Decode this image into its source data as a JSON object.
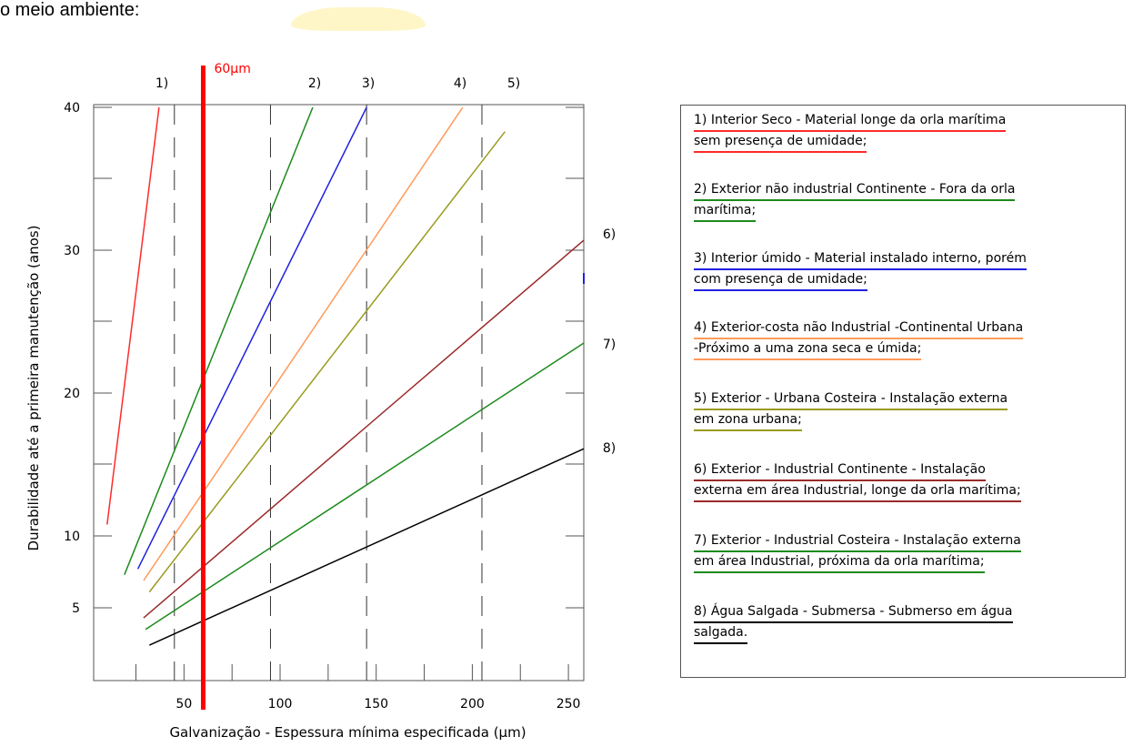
{
  "caption": "o meio ambiente:",
  "chart_data": {
    "type": "line",
    "xlabel": "Galvanização - Espessura mínima especificada (µm)",
    "ylabel": "Durabilidade até a primeira manutenção (anos)",
    "x_ticks": [
      50,
      100,
      150,
      200,
      250
    ],
    "y_ticks": [
      5,
      10,
      20,
      30,
      40
    ],
    "vertical_reference": {
      "x": 60,
      "label": "60µm",
      "color": "#ff0000"
    },
    "dashed_reference_x": [
      45,
      95,
      145,
      205
    ],
    "series": [
      {
        "name": "1)",
        "color": "#ff2a2a",
        "points": [
          [
            10,
            10.8
          ],
          [
            37,
            40
          ]
        ]
      },
      {
        "name": "2)",
        "color": "#1c8a1c",
        "points": [
          [
            19,
            7.3
          ],
          [
            117,
            40
          ]
        ]
      },
      {
        "name": "3)",
        "color": "#2020e0",
        "points": [
          [
            26,
            7.7
          ],
          [
            145,
            40
          ]
        ]
      },
      {
        "name": "4)",
        "color": "#ff9a5a",
        "points": [
          [
            29,
            6.9
          ],
          [
            195,
            40
          ]
        ]
      },
      {
        "name": "5)",
        "color": "#9a9a20",
        "points": [
          [
            32,
            6.1
          ],
          [
            217,
            38.3
          ]
        ]
      },
      {
        "name": "6)",
        "color": "#9a2a2a",
        "points": [
          [
            29,
            4.3
          ],
          [
            258,
            30.7
          ]
        ]
      },
      {
        "name": "7)",
        "color": "#1c8a1c",
        "points": [
          [
            30,
            3.5
          ],
          [
            258,
            23.5
          ]
        ]
      },
      {
        "name": "8)",
        "color": "#000000",
        "points": [
          [
            32,
            2.4
          ],
          [
            258,
            16.1
          ]
        ]
      }
    ]
  },
  "legend": [
    {
      "lines": [
        "1) Interior Seco - Material longe da orla marítima",
        "sem presença de umidade;"
      ],
      "color": "#ff2a2a"
    },
    {
      "lines": [
        "2) Exterior não industrial Continente - Fora da orla",
        "marítima;"
      ],
      "color": "#1c8a1c"
    },
    {
      "lines": [
        "3) Interior úmido - Material instalado interno, porém",
        "com presença de umidade;"
      ],
      "color": "#2020e0"
    },
    {
      "lines": [
        "4) Exterior-costa não Industrial -Continental Urbana",
        "-Próximo a uma zona seca e úmida;"
      ],
      "color": "#ff9a5a"
    },
    {
      "lines": [
        "5) Exterior - Urbana Costeira - Instalação externa",
        "em zona urbana;"
      ],
      "color": "#9a9a20"
    },
    {
      "lines": [
        "6) Exterior - Industrial Continente - Instalação",
        "externa em área Industrial, longe da orla marítima;"
      ],
      "color": "#9a2a2a"
    },
    {
      "lines": [
        "7) Exterior - Industrial Costeira - Instalação externa",
        "em área Industrial, próxima da orla marítima;"
      ],
      "color": "#1c8a1c"
    },
    {
      "lines": [
        "8) Água Salgada - Submersa - Submerso em água",
        "salgada."
      ],
      "color": "#000000"
    }
  ]
}
